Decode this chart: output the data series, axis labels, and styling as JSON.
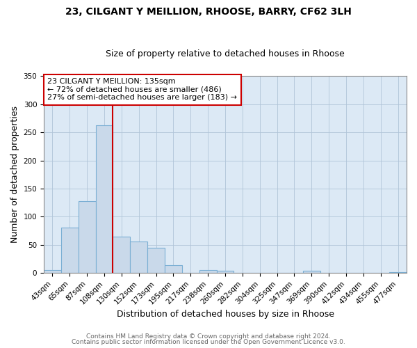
{
  "title": "23, CILGANT Y MEILLION, RHOOSE, BARRY, CF62 3LH",
  "subtitle": "Size of property relative to detached houses in Rhoose",
  "xlabel": "Distribution of detached houses by size in Rhoose",
  "ylabel": "Number of detached properties",
  "categories": [
    "43sqm",
    "65sqm",
    "87sqm",
    "108sqm",
    "130sqm",
    "152sqm",
    "173sqm",
    "195sqm",
    "217sqm",
    "238sqm",
    "260sqm",
    "282sqm",
    "304sqm",
    "325sqm",
    "347sqm",
    "369sqm",
    "390sqm",
    "412sqm",
    "434sqm",
    "455sqm",
    "477sqm"
  ],
  "values": [
    6,
    81,
    128,
    263,
    65,
    56,
    45,
    14,
    0,
    5,
    4,
    1,
    1,
    0,
    0,
    4,
    0,
    0,
    0,
    0,
    2
  ],
  "bar_color": "#c9d9ea",
  "bar_edge_color": "#7bafd4",
  "vline_color": "#cc0000",
  "ylim": [
    0,
    350
  ],
  "yticks": [
    0,
    50,
    100,
    150,
    200,
    250,
    300,
    350
  ],
  "annotation_text": "23 CILGANT Y MEILLION: 135sqm\n← 72% of detached houses are smaller (486)\n27% of semi-detached houses are larger (183) →",
  "annotation_box_color": "#ffffff",
  "annotation_box_edge_color": "#cc0000",
  "footer_line1": "Contains HM Land Registry data © Crown copyright and database right 2024.",
  "footer_line2": "Contains public sector information licensed under the Open Government Licence v3.0.",
  "figure_bg": "#ffffff",
  "plot_bg": "#dce9f5",
  "title_fontsize": 10,
  "subtitle_fontsize": 9,
  "tick_fontsize": 7.5,
  "label_fontsize": 9,
  "annotation_fontsize": 8,
  "footer_fontsize": 6.5
}
